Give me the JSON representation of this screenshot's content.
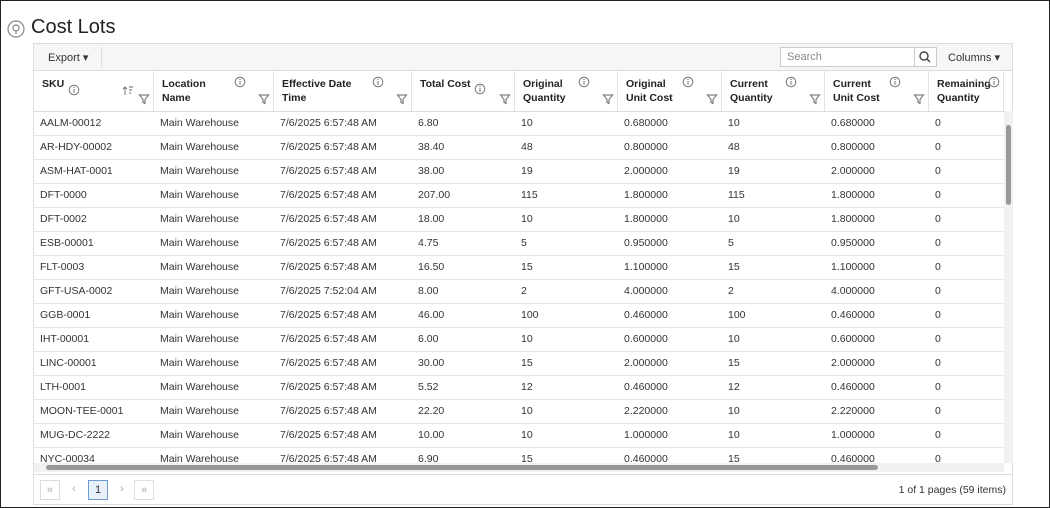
{
  "header": {
    "title": "Cost Lots"
  },
  "toolbar": {
    "export": "Export",
    "search_placeholder": "Search",
    "columns": "Columns"
  },
  "table": {
    "columns": [
      "SKU",
      "Location Name",
      "Effective Date Time",
      "Total Cost",
      "Original Quantity",
      "Original Unit Cost",
      "Current Quantity",
      "Current Unit Cost",
      "Remaining Quantity"
    ],
    "rows": [
      [
        "AALM-00012",
        "Main Warehouse",
        "7/6/2025 6:57:48 AM",
        "6.80",
        "10",
        "0.680000",
        "10",
        "0.680000",
        "0"
      ],
      [
        "AR-HDY-00002",
        "Main Warehouse",
        "7/6/2025 6:57:48 AM",
        "38.40",
        "48",
        "0.800000",
        "48",
        "0.800000",
        "0"
      ],
      [
        "ASM-HAT-0001",
        "Main Warehouse",
        "7/6/2025 6:57:48 AM",
        "38.00",
        "19",
        "2.000000",
        "19",
        "2.000000",
        "0"
      ],
      [
        "DFT-0000",
        "Main Warehouse",
        "7/6/2025 6:57:48 AM",
        "207.00",
        "115",
        "1.800000",
        "115",
        "1.800000",
        "0"
      ],
      [
        "DFT-0002",
        "Main Warehouse",
        "7/6/2025 6:57:48 AM",
        "18.00",
        "10",
        "1.800000",
        "10",
        "1.800000",
        "0"
      ],
      [
        "ESB-00001",
        "Main Warehouse",
        "7/6/2025 6:57:48 AM",
        "4.75",
        "5",
        "0.950000",
        "5",
        "0.950000",
        "0"
      ],
      [
        "FLT-0003",
        "Main Warehouse",
        "7/6/2025 6:57:48 AM",
        "16.50",
        "15",
        "1.100000",
        "15",
        "1.100000",
        "0"
      ],
      [
        "GFT-USA-0002",
        "Main Warehouse",
        "7/6/2025 7:52:04 AM",
        "8.00",
        "2",
        "4.000000",
        "2",
        "4.000000",
        "0"
      ],
      [
        "GGB-0001",
        "Main Warehouse",
        "7/6/2025 6:57:48 AM",
        "46.00",
        "100",
        "0.460000",
        "100",
        "0.460000",
        "0"
      ],
      [
        "IHT-00001",
        "Main Warehouse",
        "7/6/2025 6:57:48 AM",
        "6.00",
        "10",
        "0.600000",
        "10",
        "0.600000",
        "0"
      ],
      [
        "LINC-00001",
        "Main Warehouse",
        "7/6/2025 6:57:48 AM",
        "30.00",
        "15",
        "2.000000",
        "15",
        "2.000000",
        "0"
      ],
      [
        "LTH-0001",
        "Main Warehouse",
        "7/6/2025 6:57:48 AM",
        "5.52",
        "12",
        "0.460000",
        "12",
        "0.460000",
        "0"
      ],
      [
        "MOON-TEE-0001",
        "Main Warehouse",
        "7/6/2025 6:57:48 AM",
        "22.20",
        "10",
        "2.220000",
        "10",
        "2.220000",
        "0"
      ],
      [
        "MUG-DC-2222",
        "Main Warehouse",
        "7/6/2025 6:57:48 AM",
        "10.00",
        "10",
        "1.000000",
        "10",
        "1.000000",
        "0"
      ],
      [
        "NYC-00034",
        "Main Warehouse",
        "7/6/2025 6:57:48 AM",
        "6.90",
        "15",
        "0.460000",
        "15",
        "0.460000",
        "0"
      ]
    ]
  },
  "pagination": {
    "first": "«",
    "prev": "‹",
    "page": "1",
    "next": "›",
    "last": "»",
    "summary": "1 of 1 pages (59 items)"
  }
}
